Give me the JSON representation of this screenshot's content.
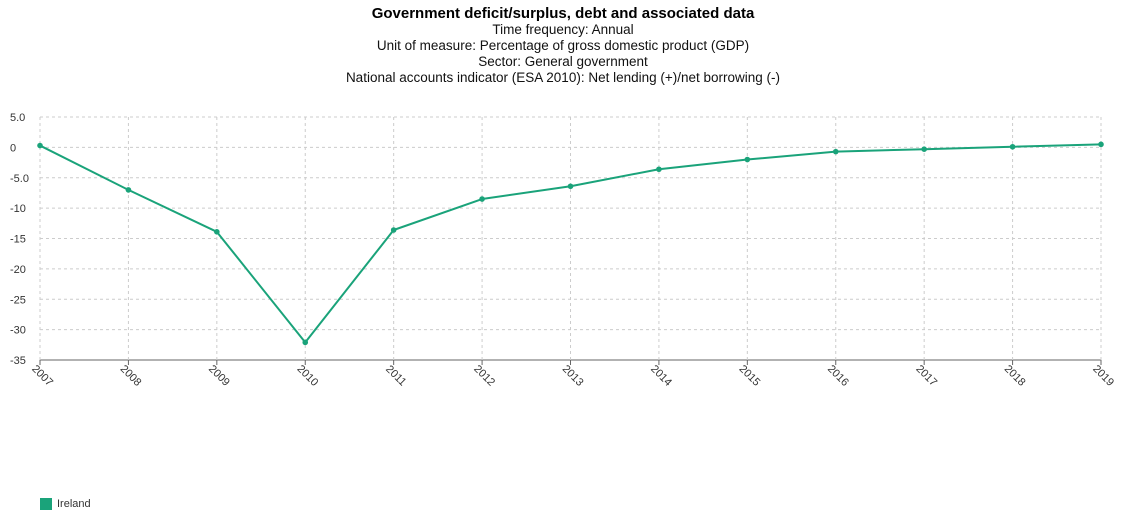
{
  "header": {
    "title": "Government deficit/surplus, debt and associated data",
    "lines": [
      "Time frequency: Annual",
      "Unit of measure: Percentage of gross domestic product (GDP)",
      "Sector: General government",
      "National accounts indicator (ESA 2010): Net lending (+)/net borrowing (-)"
    ]
  },
  "chart_data": {
    "type": "line",
    "title": "Government deficit/surplus, debt and associated data",
    "xlabel": "",
    "ylabel": "",
    "categories": [
      "2007",
      "2008",
      "2009",
      "2010",
      "2011",
      "2012",
      "2013",
      "2014",
      "2015",
      "2016",
      "2017",
      "2018",
      "2019"
    ],
    "series": [
      {
        "name": "Ireland",
        "color": "#1aa37a",
        "values": [
          0.3,
          -7.0,
          -13.9,
          -32.1,
          -13.6,
          -8.5,
          -6.4,
          -3.6,
          -2.0,
          -0.7,
          -0.3,
          0.1,
          0.5
        ]
      }
    ],
    "ylim": [
      -35,
      5
    ],
    "yticks": [
      5,
      0,
      -5,
      -10,
      -15,
      -20,
      -25,
      -30,
      -35
    ],
    "ytick_labels": [
      "5.0",
      "0",
      "-5.0",
      "-10",
      "-15",
      "-20",
      "-25",
      "-30",
      "-35"
    ],
    "grid": true,
    "legend_position": "bottom-left"
  }
}
